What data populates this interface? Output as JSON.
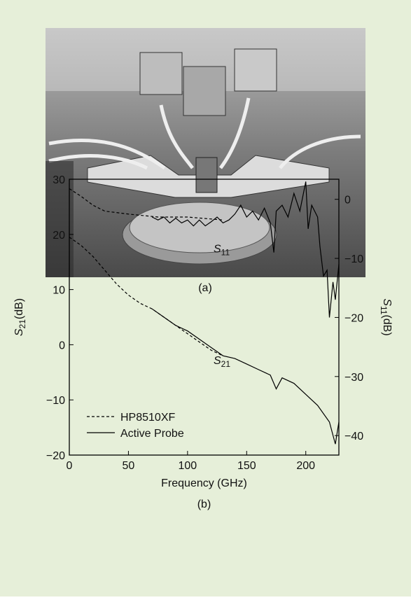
{
  "photo_caption": "(a)",
  "chart_data": {
    "type": "line",
    "caption": "(b)",
    "x_label": "Frequency (GHz)",
    "y_label": {
      "symbol": "S",
      "subscript": "21",
      "unit": "(dB)"
    },
    "y2_label": {
      "symbol": "S",
      "subscript": "11",
      "unit": "(dB)"
    },
    "xlim": [
      0,
      228
    ],
    "xticks": [
      0,
      50,
      100,
      150,
      200
    ],
    "ylim": [
      -20,
      30
    ],
    "yticks": [
      {
        "value": -20,
        "label": "−20"
      },
      {
        "value": -10,
        "label": "−10"
      },
      0,
      10,
      20,
      30
    ],
    "y2lim": [
      -43.3,
      3.4
    ],
    "y2ticks": [
      {
        "value": -40,
        "label": "−40"
      },
      {
        "value": -30,
        "label": "−30"
      },
      {
        "value": -20,
        "label": "−20"
      },
      {
        "value": -10,
        "label": "−10"
      },
      0
    ],
    "annotations": [
      {
        "symbol": "S",
        "subscript": "11",
        "x": 122,
        "y": -9,
        "axis": "y2"
      },
      {
        "symbol": "S",
        "subscript": "21",
        "x": 122,
        "y": -3.5
      }
    ],
    "series": [
      {
        "name": "HP8510XF",
        "color": "#000000",
        "dash": "dashed",
        "x": [
          0,
          10,
          20,
          30,
          40,
          50,
          60,
          70,
          80,
          90,
          100,
          110,
          120,
          130
        ],
        "values": [
          19.5,
          18,
          16,
          13.5,
          11,
          9,
          7.5,
          6.5,
          5,
          3.5,
          2,
          0.5,
          -1,
          -2
        ]
      },
      {
        "name": "Active Probe",
        "color": "#000000",
        "dash": "solid",
        "x": [
          70,
          80,
          90,
          100,
          110,
          120,
          130,
          140,
          150,
          160,
          170,
          175,
          180,
          190,
          200,
          210,
          220,
          225,
          228
        ],
        "values": [
          6.5,
          5,
          3.5,
          2.5,
          1,
          -0.5,
          -2,
          -2.5,
          -3.5,
          -4.5,
          -5.5,
          -8,
          -6,
          -7,
          -9,
          -11,
          -14,
          -18,
          -14
        ]
      },
      {
        "axis": "y2",
        "color": "#000000",
        "dash": "dashed",
        "x": [
          0,
          10,
          20,
          30,
          50,
          75,
          100,
          130
        ],
        "values": [
          1.8,
          0.5,
          -1,
          -2,
          -2.5,
          -3,
          -3,
          -3.5
        ]
      },
      {
        "axis": "y2",
        "color": "#000000",
        "dash": "solid",
        "x": [
          70,
          75,
          80,
          85,
          90,
          95,
          100,
          105,
          110,
          115,
          120,
          125,
          130,
          135,
          140,
          145,
          150,
          155,
          160,
          165,
          170,
          173,
          175,
          180,
          185,
          190,
          195,
          200,
          202,
          205,
          210,
          212,
          215,
          218,
          220,
          223,
          225,
          228
        ],
        "values": [
          -3,
          -3.5,
          -3,
          -4,
          -3.2,
          -4,
          -3.5,
          -4.5,
          -3.5,
          -4.5,
          -3.8,
          -3,
          -4,
          -3.5,
          -2.5,
          -1,
          -3,
          -2,
          -3.5,
          -1.5,
          -4,
          -9,
          -2,
          -1,
          -3,
          1,
          -2,
          3,
          -5,
          -1,
          -3,
          -8,
          -13,
          -12,
          -20,
          -14,
          -17,
          -11
        ]
      }
    ]
  }
}
